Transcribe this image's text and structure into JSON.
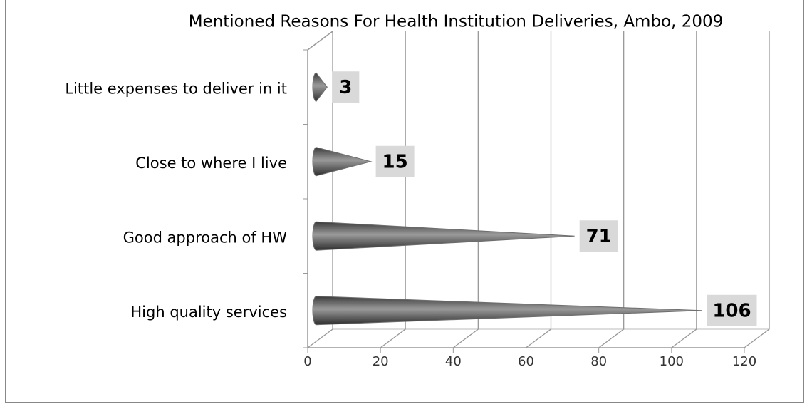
{
  "chart_data": {
    "type": "bar",
    "orientation": "horizontal",
    "title": "Mentioned Reasons For Health Institution Deliveries, Ambo, 2009",
    "categories": [
      "Little expenses to deliver in it",
      "Close to where I live",
      "Good approach of HW",
      "High quality services"
    ],
    "values": [
      3,
      15,
      71,
      106
    ],
    "color": "#6e6e6e",
    "xlim": [
      0,
      120
    ],
    "xticks": [
      0,
      20,
      40,
      60,
      80,
      100,
      120
    ],
    "grid": true
  }
}
